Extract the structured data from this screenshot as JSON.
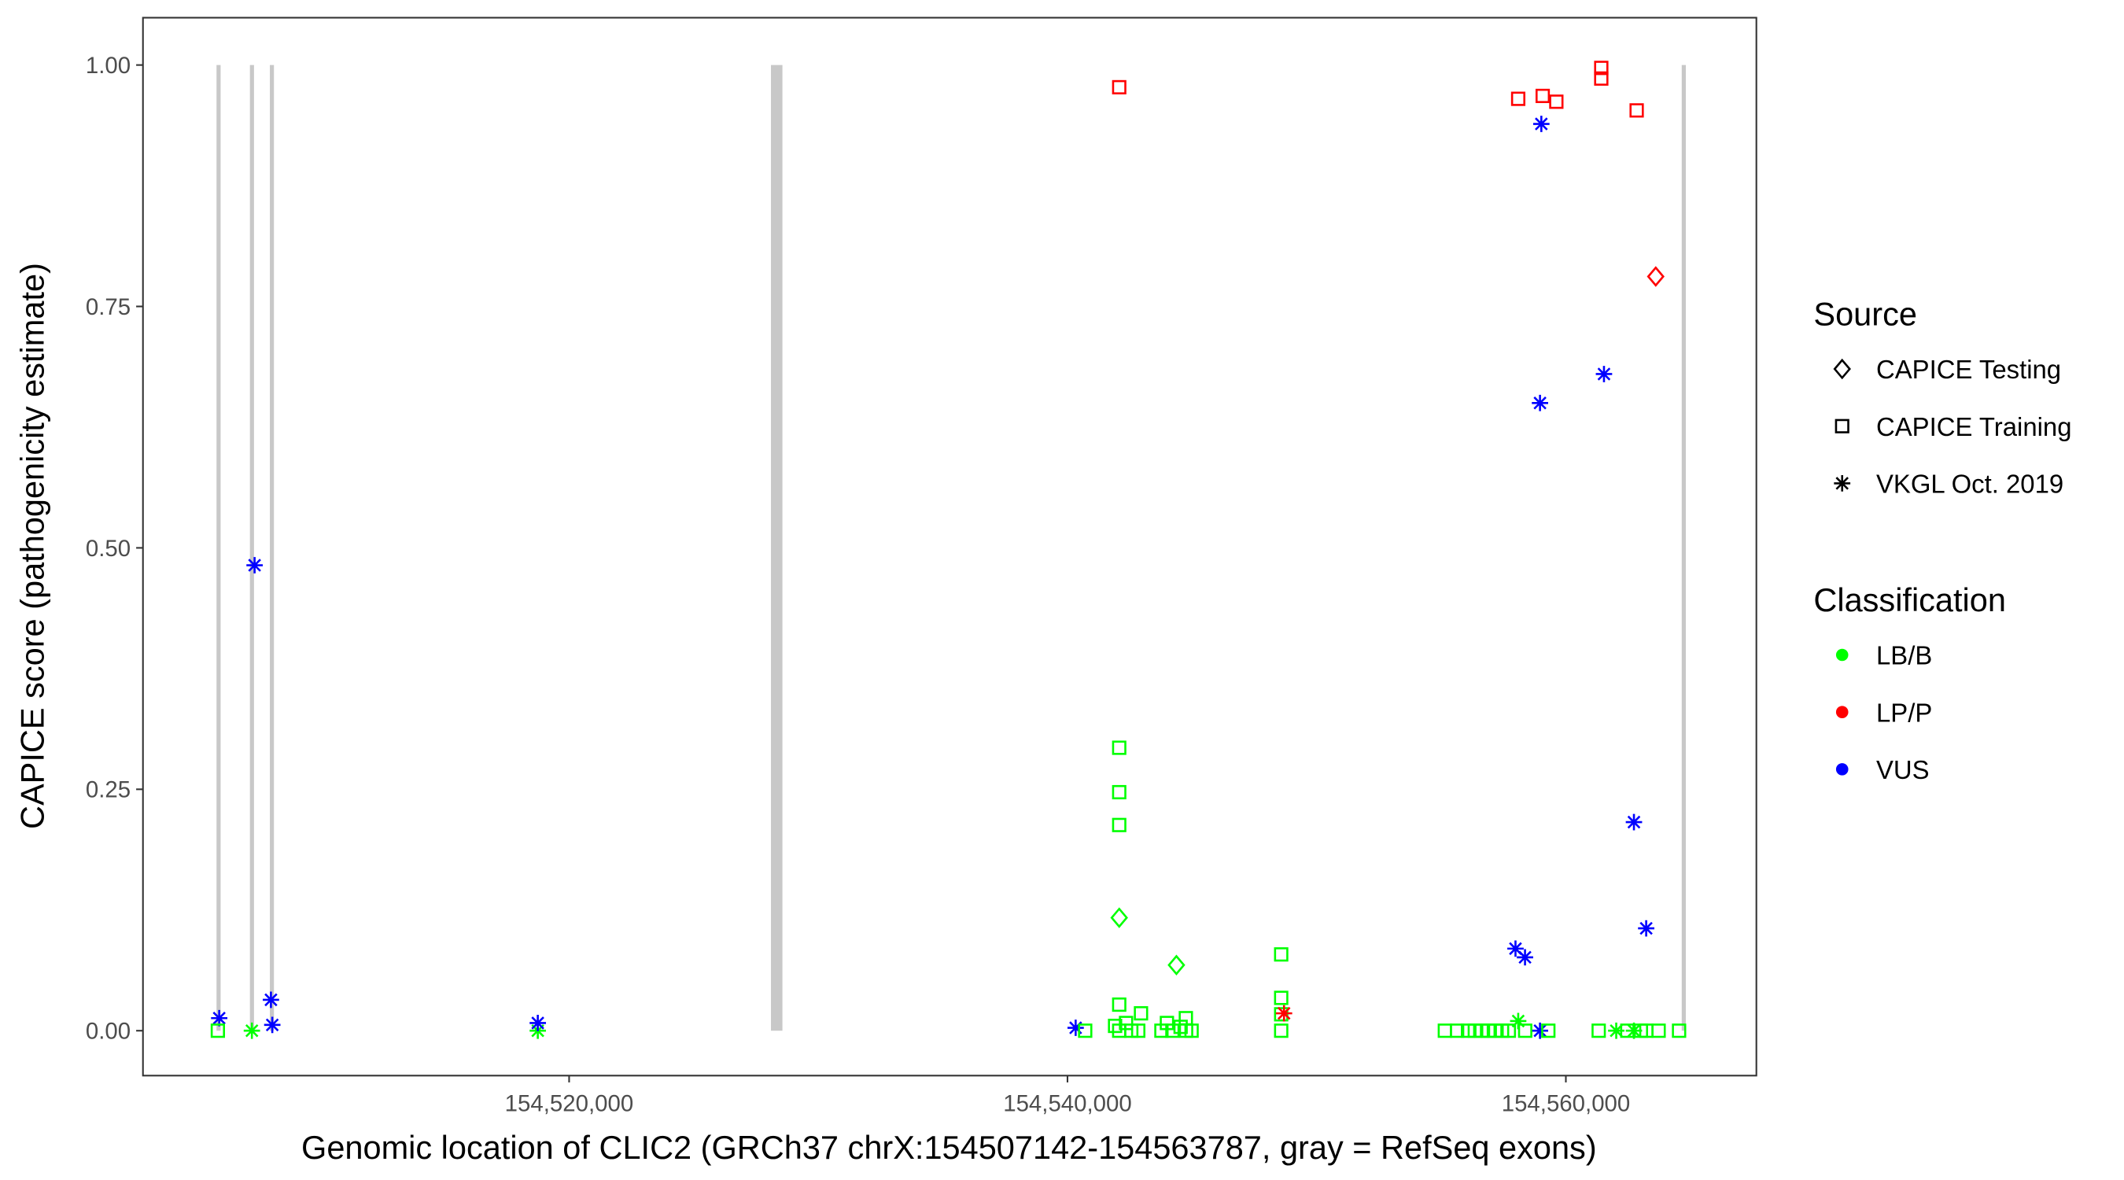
{
  "chart_data": {
    "type": "scatter",
    "xlabel": "Genomic location of CLIC2 (GRCh37 chrX:154507142-154563787, gray = RefSeq exons)",
    "ylabel": "CAPICE score (pathogenicity estimate)",
    "xlim": [
      154502898,
      154567646
    ],
    "ylim": [
      -0.0465,
      1.049
    ],
    "x_ticks": [
      154520000,
      154540000,
      154560000
    ],
    "x_tick_labels": [
      "154,520,000",
      "154,540,000",
      "154,560,000"
    ],
    "y_ticks": [
      0,
      0.25,
      0.5,
      0.75,
      1.0
    ],
    "y_tick_labels": [
      "0.00",
      "0.25",
      "0.50",
      "0.75",
      "1.00"
    ],
    "grid": false,
    "legend_placement": "right",
    "exons": [
      [
        154505850,
        154505960
      ],
      [
        154507190,
        154507300
      ],
      [
        154507990,
        154508090
      ],
      [
        154528100,
        154528560
      ],
      [
        154564650,
        154564720
      ]
    ],
    "legend": {
      "source_title": "Source",
      "sources": [
        {
          "label": "CAPICE Testing",
          "shape": "diamond"
        },
        {
          "label": "CAPICE Training",
          "shape": "square"
        },
        {
          "label": "VKGL Oct. 2019",
          "shape": "asterisk"
        }
      ],
      "class_title": "Classification",
      "classes": [
        {
          "label": "LB/B",
          "color": "#00ff00"
        },
        {
          "label": "LP/P",
          "color": "#ff0000"
        },
        {
          "label": "VUS",
          "color": "#0000ff"
        }
      ]
    },
    "points": [
      {
        "x": 154505958,
        "y": 0.013,
        "source": "VKGL Oct. 2019",
        "class": "VUS"
      },
      {
        "x": 154505903,
        "y": 0.0,
        "source": "CAPICE Training",
        "class": "LB/B"
      },
      {
        "x": 154507269,
        "y": 0.0,
        "source": "VKGL Oct. 2019",
        "class": "LB/B"
      },
      {
        "x": 154507378,
        "y": 0.482,
        "source": "VKGL Oct. 2019",
        "class": "VUS"
      },
      {
        "x": 154508034,
        "y": 0.032,
        "source": "VKGL Oct. 2019",
        "class": "VUS"
      },
      {
        "x": 154508088,
        "y": 0.006,
        "source": "VKGL Oct. 2019",
        "class": "VUS"
      },
      {
        "x": 154518743,
        "y": 0.0,
        "source": "VKGL Oct. 2019",
        "class": "LB/B"
      },
      {
        "x": 154518743,
        "y": 0.008,
        "source": "VKGL Oct. 2019",
        "class": "VUS"
      },
      {
        "x": 154540328,
        "y": 0.003,
        "source": "VKGL Oct. 2019",
        "class": "VUS"
      },
      {
        "x": 154540710,
        "y": 0.0,
        "source": "CAPICE Training",
        "class": "LB/B"
      },
      {
        "x": 154542076,
        "y": 0.977,
        "source": "CAPICE Training",
        "class": "LP/P"
      },
      {
        "x": 154542076,
        "y": 0.293,
        "source": "CAPICE Training",
        "class": "LB/B"
      },
      {
        "x": 154542076,
        "y": 0.247,
        "source": "CAPICE Training",
        "class": "LB/B"
      },
      {
        "x": 154542076,
        "y": 0.213,
        "source": "CAPICE Training",
        "class": "LB/B"
      },
      {
        "x": 154542076,
        "y": 0.027,
        "source": "CAPICE Training",
        "class": "LB/B"
      },
      {
        "x": 154542076,
        "y": 0.0,
        "source": "CAPICE Training",
        "class": "LB/B"
      },
      {
        "x": 154542076,
        "y": 0.117,
        "source": "CAPICE Testing",
        "class": "LB/B"
      },
      {
        "x": 154544371,
        "y": 0.068,
        "source": "CAPICE Testing",
        "class": "LB/B"
      },
      {
        "x": 154542950,
        "y": 0.018,
        "source": "CAPICE Training",
        "class": "LB/B"
      },
      {
        "x": 154544750,
        "y": 0.013,
        "source": "CAPICE Training",
        "class": "LB/B"
      },
      {
        "x": 154541910,
        "y": 0.005,
        "source": "CAPICE Training",
        "class": "LB/B"
      },
      {
        "x": 154542350,
        "y": 0.008,
        "source": "CAPICE Training",
        "class": "LB/B"
      },
      {
        "x": 154542560,
        "y": 0.0,
        "source": "CAPICE Training",
        "class": "LB/B"
      },
      {
        "x": 154542840,
        "y": 0.0,
        "source": "CAPICE Training",
        "class": "LB/B"
      },
      {
        "x": 154543770,
        "y": 0.0,
        "source": "CAPICE Training",
        "class": "LB/B"
      },
      {
        "x": 154543990,
        "y": 0.008,
        "source": "CAPICE Training",
        "class": "LB/B"
      },
      {
        "x": 154544210,
        "y": 0.0,
        "source": "CAPICE Training",
        "class": "LB/B"
      },
      {
        "x": 154544540,
        "y": 0.004,
        "source": "CAPICE Training",
        "class": "LB/B"
      },
      {
        "x": 154544760,
        "y": 0.0,
        "source": "CAPICE Training",
        "class": "LB/B"
      },
      {
        "x": 154544980,
        "y": 0.0,
        "source": "CAPICE Training",
        "class": "LB/B"
      },
      {
        "x": 154548576,
        "y": 0.079,
        "source": "CAPICE Training",
        "class": "LB/B"
      },
      {
        "x": 154548576,
        "y": 0.034,
        "source": "CAPICE Training",
        "class": "LB/B"
      },
      {
        "x": 154548576,
        "y": 0.017,
        "source": "CAPICE Training",
        "class": "LB/B"
      },
      {
        "x": 154548576,
        "y": 0.0,
        "source": "CAPICE Training",
        "class": "LB/B"
      },
      {
        "x": 154548690,
        "y": 0.018,
        "source": "VKGL Oct. 2019",
        "class": "LP/P"
      },
      {
        "x": 154558088,
        "y": 0.965,
        "source": "CAPICE Training",
        "class": "LP/P"
      },
      {
        "x": 154559071,
        "y": 0.968,
        "source": "CAPICE Training",
        "class": "LP/P"
      },
      {
        "x": 154559618,
        "y": 0.962,
        "source": "CAPICE Training",
        "class": "LP/P"
      },
      {
        "x": 154561421,
        "y": 0.997,
        "source": "CAPICE Training",
        "class": "LP/P"
      },
      {
        "x": 154561421,
        "y": 0.986,
        "source": "CAPICE Training",
        "class": "LP/P"
      },
      {
        "x": 154562842,
        "y": 0.953,
        "source": "CAPICE Training",
        "class": "LP/P"
      },
      {
        "x": 154563607,
        "y": 0.781,
        "source": "CAPICE Testing",
        "class": "LP/P"
      },
      {
        "x": 154559016,
        "y": 0.939,
        "source": "VKGL Oct. 2019",
        "class": "VUS"
      },
      {
        "x": 154558962,
        "y": 0.65,
        "source": "VKGL Oct. 2019",
        "class": "VUS"
      },
      {
        "x": 154561530,
        "y": 0.68,
        "source": "VKGL Oct. 2019",
        "class": "VUS"
      },
      {
        "x": 154562732,
        "y": 0.216,
        "source": "VKGL Oct. 2019",
        "class": "VUS"
      },
      {
        "x": 154563224,
        "y": 0.106,
        "source": "VKGL Oct. 2019",
        "class": "VUS"
      },
      {
        "x": 154557979,
        "y": 0.085,
        "source": "VKGL Oct. 2019",
        "class": "VUS"
      },
      {
        "x": 154558361,
        "y": 0.076,
        "source": "VKGL Oct. 2019",
        "class": "VUS"
      },
      {
        "x": 154558962,
        "y": 0.0,
        "source": "VKGL Oct. 2019",
        "class": "VUS"
      },
      {
        "x": 154558088,
        "y": 0.01,
        "source": "VKGL Oct. 2019",
        "class": "LB/B"
      },
      {
        "x": 154562022,
        "y": 0.0,
        "source": "VKGL Oct. 2019",
        "class": "LB/B"
      },
      {
        "x": 154562732,
        "y": 0.0,
        "source": "VKGL Oct. 2019",
        "class": "LB/B"
      },
      {
        "x": 154555144,
        "y": 0.0,
        "source": "CAPICE Training",
        "class": "LB/B"
      },
      {
        "x": 154555636,
        "y": 0.0,
        "source": "CAPICE Training",
        "class": "LB/B"
      },
      {
        "x": 154556073,
        "y": 0.0,
        "source": "CAPICE Training",
        "class": "LB/B"
      },
      {
        "x": 154556346,
        "y": 0.0,
        "source": "CAPICE Training",
        "class": "LB/B"
      },
      {
        "x": 154556619,
        "y": 0.0,
        "source": "CAPICE Training",
        "class": "LB/B"
      },
      {
        "x": 154556892,
        "y": 0.0,
        "source": "CAPICE Training",
        "class": "LB/B"
      },
      {
        "x": 154557166,
        "y": 0.0,
        "source": "CAPICE Training",
        "class": "LB/B"
      },
      {
        "x": 154557439,
        "y": 0.0,
        "source": "CAPICE Training",
        "class": "LB/B"
      },
      {
        "x": 154557712,
        "y": 0.0,
        "source": "CAPICE Training",
        "class": "LB/B"
      },
      {
        "x": 154558368,
        "y": 0.0,
        "source": "CAPICE Training",
        "class": "LB/B"
      },
      {
        "x": 154559297,
        "y": 0.0,
        "source": "CAPICE Training",
        "class": "LB/B"
      },
      {
        "x": 154561318,
        "y": 0.0,
        "source": "CAPICE Training",
        "class": "LB/B"
      },
      {
        "x": 154562466,
        "y": 0.0,
        "source": "CAPICE Training",
        "class": "LB/B"
      },
      {
        "x": 154563012,
        "y": 0.0,
        "source": "CAPICE Training",
        "class": "LB/B"
      },
      {
        "x": 154563231,
        "y": 0.0,
        "source": "CAPICE Training",
        "class": "LB/B"
      },
      {
        "x": 154563723,
        "y": 0.0,
        "source": "CAPICE Training",
        "class": "LB/B"
      },
      {
        "x": 154564543,
        "y": 0.0,
        "source": "CAPICE Training",
        "class": "LB/B"
      }
    ]
  }
}
